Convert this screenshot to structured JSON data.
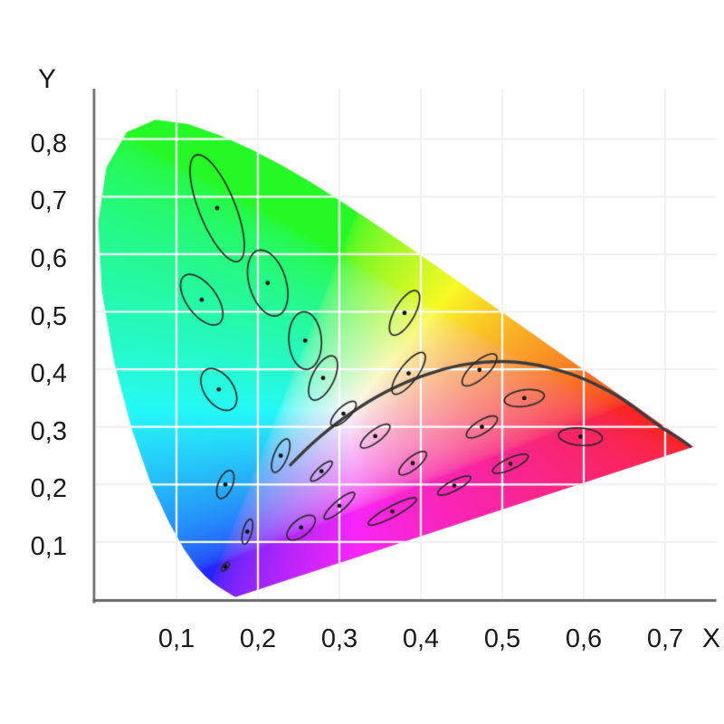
{
  "figure": {
    "x_axis_title": "X",
    "y_axis_title": "Y"
  },
  "chart_data": {
    "type": "scatter",
    "description": "CIE 1931 xy chromaticity diagram (colored horseshoe gamut) with 25 MacAdam ellipses magnified 10x and the Planckian locus curve",
    "xlabel": "X",
    "ylabel": "Y",
    "xlim": [
      0,
      0.78
    ],
    "ylim": [
      0,
      0.885
    ],
    "grid": true,
    "x_ticks": [
      {
        "value": 0.1,
        "label": "0,1"
      },
      {
        "value": 0.2,
        "label": "0,2"
      },
      {
        "value": 0.3,
        "label": "0,3"
      },
      {
        "value": 0.4,
        "label": "0,4"
      },
      {
        "value": 0.5,
        "label": "0,5"
      },
      {
        "value": 0.6,
        "label": "0,6"
      },
      {
        "value": 0.7,
        "label": "0,7"
      }
    ],
    "y_ticks": [
      {
        "value": 0.8,
        "label": "0,8"
      },
      {
        "value": 0.7,
        "label": "0,7"
      },
      {
        "value": 0.6,
        "label": "0,6"
      },
      {
        "value": 0.5,
        "label": "0,5"
      },
      {
        "value": 0.4,
        "label": "0,4"
      },
      {
        "value": 0.3,
        "label": "0,3"
      },
      {
        "value": 0.2,
        "label": "0,2"
      },
      {
        "value": 0.1,
        "label": "0,1"
      }
    ],
    "ellipse_magnification": 10,
    "ellipse_axis_unit": "0.001 xy per unit of a/b",
    "macadam_ellipses": [
      {
        "x": 0.16,
        "y": 0.057,
        "a": 0.85,
        "b": 0.35,
        "theta": 62
      },
      {
        "x": 0.187,
        "y": 0.118,
        "a": 2.2,
        "b": 0.55,
        "theta": 80
      },
      {
        "x": 0.253,
        "y": 0.125,
        "a": 2.5,
        "b": 1.2,
        "theta": 55
      },
      {
        "x": 0.15,
        "y": 0.68,
        "a": 9.6,
        "b": 2.3,
        "theta": 105
      },
      {
        "x": 0.131,
        "y": 0.521,
        "a": 4.7,
        "b": 2.0,
        "theta": 113
      },
      {
        "x": 0.212,
        "y": 0.55,
        "a": 5.8,
        "b": 2.3,
        "theta": 100
      },
      {
        "x": 0.258,
        "y": 0.45,
        "a": 5.0,
        "b": 2.0,
        "theta": 92
      },
      {
        "x": 0.152,
        "y": 0.365,
        "a": 3.8,
        "b": 1.9,
        "theta": 110
      },
      {
        "x": 0.28,
        "y": 0.385,
        "a": 4.0,
        "b": 1.4,
        "theta": 73
      },
      {
        "x": 0.38,
        "y": 0.498,
        "a": 4.1,
        "b": 1.3,
        "theta": 70
      },
      {
        "x": 0.16,
        "y": 0.2,
        "a": 2.5,
        "b": 0.9,
        "theta": 76
      },
      {
        "x": 0.228,
        "y": 0.25,
        "a": 3.0,
        "b": 0.85,
        "theta": 75
      },
      {
        "x": 0.305,
        "y": 0.323,
        "a": 2.5,
        "b": 0.9,
        "theta": 57
      },
      {
        "x": 0.385,
        "y": 0.393,
        "a": 4.0,
        "b": 1.2,
        "theta": 64
      },
      {
        "x": 0.472,
        "y": 0.399,
        "a": 3.3,
        "b": 1.2,
        "theta": 55
      },
      {
        "x": 0.527,
        "y": 0.35,
        "a": 2.5,
        "b": 1.4,
        "theta": 14
      },
      {
        "x": 0.475,
        "y": 0.3,
        "a": 2.5,
        "b": 1.0,
        "theta": 45
      },
      {
        "x": 0.51,
        "y": 0.236,
        "a": 2.6,
        "b": 0.9,
        "theta": 35
      },
      {
        "x": 0.596,
        "y": 0.283,
        "a": 2.7,
        "b": 1.5,
        "theta": 172
      },
      {
        "x": 0.344,
        "y": 0.284,
        "a": 2.6,
        "b": 0.9,
        "theta": 50
      },
      {
        "x": 0.39,
        "y": 0.237,
        "a": 2.5,
        "b": 0.9,
        "theta": 52
      },
      {
        "x": 0.441,
        "y": 0.198,
        "a": 2.5,
        "b": 0.8,
        "theta": 38
      },
      {
        "x": 0.278,
        "y": 0.223,
        "a": 2.1,
        "b": 0.6,
        "theta": 54
      },
      {
        "x": 0.3,
        "y": 0.163,
        "a": 2.9,
        "b": 0.75,
        "theta": 52
      },
      {
        "x": 0.365,
        "y": 0.153,
        "a": 3.7,
        "b": 0.85,
        "theta": 38
      }
    ],
    "planckian_locus": [
      [
        0.24,
        0.234
      ],
      [
        0.2565,
        0.2577
      ],
      [
        0.2687,
        0.2739
      ],
      [
        0.2807,
        0.2884
      ],
      [
        0.2952,
        0.3048
      ],
      [
        0.3135,
        0.3237
      ],
      [
        0.3324,
        0.341
      ],
      [
        0.3451,
        0.3516
      ],
      [
        0.3608,
        0.3635
      ],
      [
        0.3805,
        0.3768
      ],
      [
        0.4053,
        0.3907
      ],
      [
        0.4369,
        0.4041
      ],
      [
        0.477,
        0.4137
      ],
      [
        0.5269,
        0.4133
      ],
      [
        0.5857,
        0.3931
      ],
      [
        0.625,
        0.367
      ],
      [
        0.6528,
        0.3444
      ],
      [
        0.6931,
        0.3003
      ],
      [
        0.716,
        0.2815
      ],
      [
        0.731,
        0.266
      ]
    ],
    "spectral_locus": [
      [
        0.1741,
        0.005
      ],
      [
        0.174,
        0.005
      ],
      [
        0.1738,
        0.0049
      ],
      [
        0.1736,
        0.0049
      ],
      [
        0.1733,
        0.0048
      ],
      [
        0.173,
        0.0048
      ],
      [
        0.1726,
        0.0048
      ],
      [
        0.1721,
        0.0048
      ],
      [
        0.1714,
        0.0051
      ],
      [
        0.1703,
        0.0058
      ],
      [
        0.1689,
        0.0069
      ],
      [
        0.1669,
        0.0086
      ],
      [
        0.1644,
        0.0109
      ],
      [
        0.1611,
        0.0138
      ],
      [
        0.1566,
        0.0177
      ],
      [
        0.151,
        0.0227
      ],
      [
        0.144,
        0.0297
      ],
      [
        0.1355,
        0.0399
      ],
      [
        0.1241,
        0.0578
      ],
      [
        0.1096,
        0.0868
      ],
      [
        0.0913,
        0.1327
      ],
      [
        0.0687,
        0.2007
      ],
      [
        0.0454,
        0.295
      ],
      [
        0.0235,
        0.4127
      ],
      [
        0.0082,
        0.5384
      ],
      [
        0.0039,
        0.6548
      ],
      [
        0.0139,
        0.7502
      ],
      [
        0.0389,
        0.812
      ],
      [
        0.0743,
        0.8338
      ],
      [
        0.1142,
        0.8262
      ],
      [
        0.1547,
        0.8059
      ],
      [
        0.1929,
        0.7816
      ],
      [
        0.2296,
        0.7543
      ],
      [
        0.2658,
        0.7243
      ],
      [
        0.3016,
        0.6923
      ],
      [
        0.3373,
        0.6589
      ],
      [
        0.3731,
        0.6245
      ],
      [
        0.4087,
        0.5896
      ],
      [
        0.4441,
        0.5547
      ],
      [
        0.4788,
        0.5202
      ],
      [
        0.5125,
        0.4866
      ],
      [
        0.5448,
        0.4544
      ],
      [
        0.5752,
        0.4242
      ],
      [
        0.6029,
        0.3965
      ],
      [
        0.627,
        0.3725
      ],
      [
        0.6482,
        0.3514
      ],
      [
        0.6658,
        0.334
      ],
      [
        0.6801,
        0.3197
      ],
      [
        0.6915,
        0.3083
      ],
      [
        0.7006,
        0.2993
      ],
      [
        0.7079,
        0.292
      ],
      [
        0.714,
        0.2859
      ],
      [
        0.719,
        0.2809
      ],
      [
        0.723,
        0.277
      ],
      [
        0.726,
        0.274
      ],
      [
        0.7283,
        0.2717
      ],
      [
        0.73,
        0.27
      ],
      [
        0.7311,
        0.2689
      ],
      [
        0.732,
        0.268
      ],
      [
        0.7327,
        0.2673
      ],
      [
        0.7334,
        0.2666
      ],
      [
        0.734,
        0.266
      ],
      [
        0.7344,
        0.2656
      ],
      [
        0.7346,
        0.2654
      ],
      [
        0.7347,
        0.2653
      ]
    ],
    "colors": {
      "background": "#ffffff",
      "axis": "#686868",
      "grid_inside": "#ffffff",
      "grid_outside": "#f0f0f0",
      "ellipse_stroke": "#2a2a2a",
      "center_dot": "#111111",
      "planckian_curve": "#3c3c3c",
      "tick_text": "#1a1a1a"
    }
  }
}
